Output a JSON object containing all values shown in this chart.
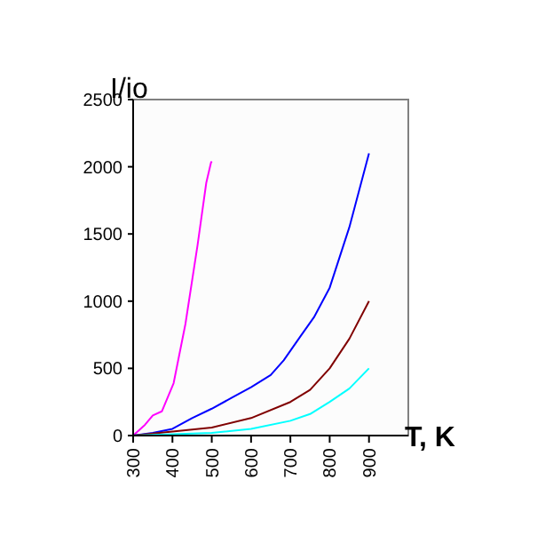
{
  "chart_data": {
    "type": "line",
    "xlabel": "T, K",
    "ylabel": "I/io",
    "xlim": [
      300,
      1000
    ],
    "ylim": [
      0,
      2500
    ],
    "xticks": [
      300,
      400,
      500,
      600,
      700,
      800,
      900
    ],
    "yticks": [
      0,
      500,
      1000,
      1500,
      2000,
      2500
    ],
    "grid": false,
    "marker": "none",
    "line_style": "solid",
    "series": [
      {
        "color": "#ff00ff",
        "x": [
          300,
          330,
          350,
          373,
          403,
          433,
          464,
          486,
          498,
          500
        ],
        "values": [
          0,
          80,
          150,
          180,
          390,
          830,
          1420,
          1880,
          2030,
          2040
        ]
      },
      {
        "color": "#0000ff",
        "x": [
          300,
          350,
          400,
          450,
          500,
          550,
          600,
          650,
          683,
          726,
          760,
          800,
          850,
          900
        ],
        "values": [
          0,
          20,
          50,
          130,
          200,
          280,
          360,
          450,
          560,
          740,
          880,
          1100,
          1550,
          2100
        ]
      },
      {
        "color": "#800000",
        "x": [
          300,
          400,
          500,
          600,
          700,
          750,
          800,
          850,
          900
        ],
        "values": [
          0,
          30,
          60,
          130,
          250,
          340,
          500,
          720,
          1000
        ]
      },
      {
        "color": "#00ffff",
        "x": [
          300,
          400,
          500,
          600,
          700,
          750,
          800,
          850,
          900
        ],
        "values": [
          0,
          10,
          20,
          50,
          110,
          160,
          250,
          350,
          500
        ]
      }
    ]
  }
}
